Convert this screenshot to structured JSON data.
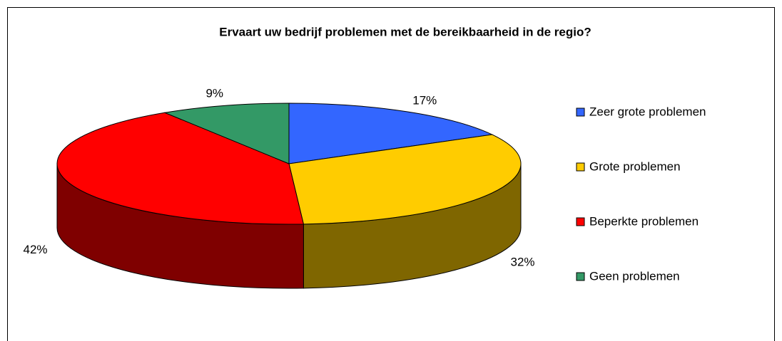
{
  "chart_data": {
    "type": "pie3d",
    "title": "Ervaart uw bedrijf problemen met de bereikbaarheid in de regio?",
    "categories": [
      "Zeer grote problemen",
      "Grote problemen",
      "Beperkte problemen",
      "Geen problemen"
    ],
    "values": [
      17,
      32,
      42,
      9
    ],
    "value_labels": [
      "17%",
      "32%",
      "42%",
      "9%"
    ],
    "colors": [
      "#3366ff",
      "#ffcc00",
      "#ff0000",
      "#339966"
    ],
    "legend": "right"
  }
}
